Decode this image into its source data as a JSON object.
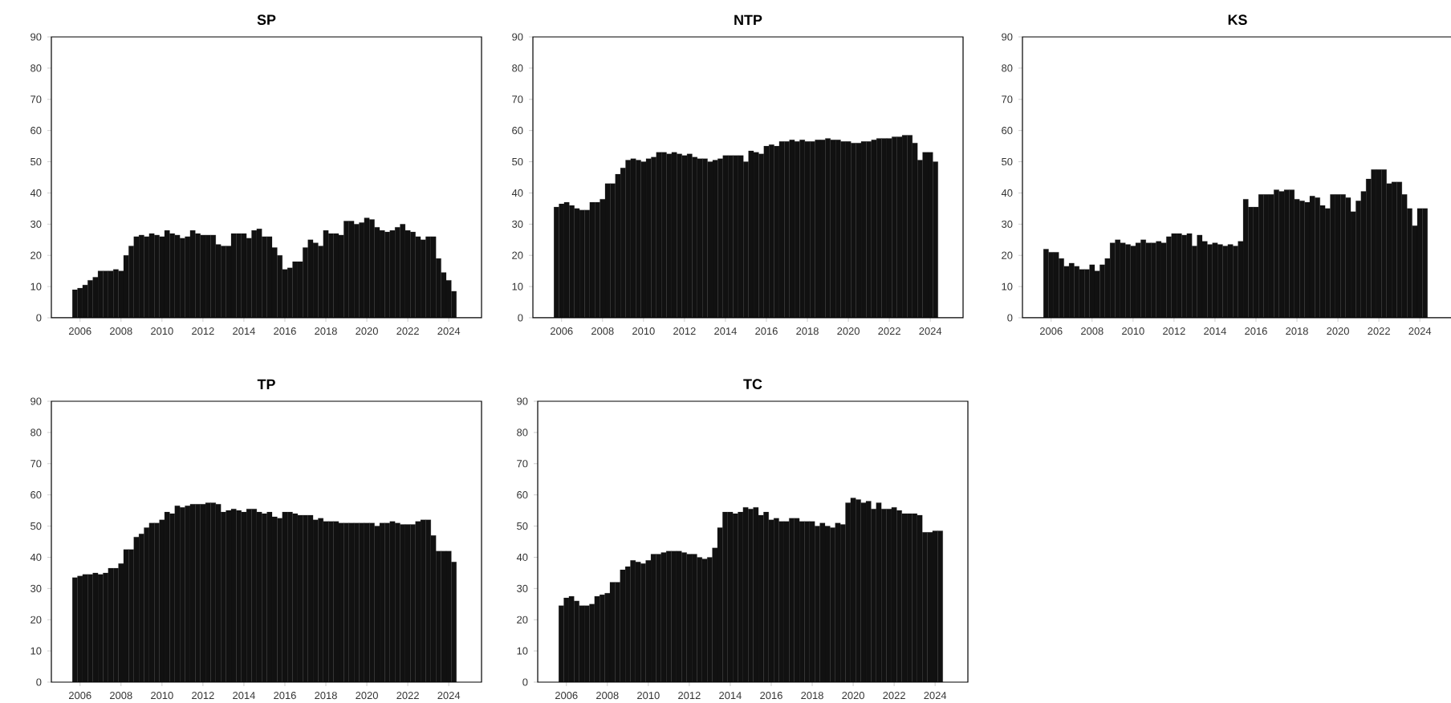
{
  "chart_data": [
    {
      "type": "bar",
      "title": "SP",
      "color": "#111111",
      "xlim": [
        2004.6,
        2025.6
      ],
      "ylim": [
        0,
        90
      ],
      "xticks": [
        2006,
        2008,
        2010,
        2012,
        2014,
        2016,
        2018,
        2020,
        2022,
        2024
      ],
      "yticks": [
        0,
        10,
        20,
        30,
        40,
        50,
        60,
        70,
        80,
        90
      ],
      "x": [
        2005.75,
        2006,
        2006.25,
        2006.5,
        2006.75,
        2007,
        2007.25,
        2007.5,
        2007.75,
        2008,
        2008.25,
        2008.5,
        2008.75,
        2009,
        2009.25,
        2009.5,
        2009.75,
        2010,
        2010.25,
        2010.5,
        2010.75,
        2011,
        2011.25,
        2011.5,
        2011.75,
        2012,
        2012.25,
        2012.5,
        2012.75,
        2013,
        2013.25,
        2013.5,
        2013.75,
        2014,
        2014.25,
        2014.5,
        2014.75,
        2015,
        2015.25,
        2015.5,
        2015.75,
        2016,
        2016.25,
        2016.5,
        2016.75,
        2017,
        2017.25,
        2017.5,
        2017.75,
        2018,
        2018.25,
        2018.5,
        2018.75,
        2019,
        2019.25,
        2019.5,
        2019.75,
        2020,
        2020.25,
        2020.5,
        2020.75,
        2021,
        2021.25,
        2021.5,
        2021.75,
        2022,
        2022.25,
        2022.5,
        2022.75,
        2023,
        2023.25,
        2023.5,
        2023.75,
        2024,
        2024.25
      ],
      "values": [
        9,
        9.5,
        10.5,
        12,
        13,
        15,
        15,
        15,
        15.5,
        15,
        20,
        23,
        26,
        26.5,
        26,
        27,
        26.5,
        26,
        28,
        27,
        26.5,
        25.5,
        26,
        28,
        27,
        26.5,
        26.5,
        26.5,
        23.5,
        23,
        23,
        27,
        27,
        27,
        25.5,
        28,
        28.5,
        26,
        26,
        22.5,
        20,
        15.5,
        16,
        18,
        18,
        22.5,
        25,
        24,
        23,
        28,
        27,
        27,
        26.5,
        31,
        31,
        30,
        30.5,
        32,
        31.5,
        29,
        28,
        27.5,
        28,
        29,
        30,
        28,
        27.5,
        26,
        25,
        26,
        26,
        19,
        14.5,
        12,
        8.5
      ]
    },
    {
      "type": "bar",
      "title": "NTP",
      "color": "#111111",
      "xlim": [
        2004.6,
        2025.6
      ],
      "ylim": [
        0,
        90
      ],
      "xticks": [
        2006,
        2008,
        2010,
        2012,
        2014,
        2016,
        2018,
        2020,
        2022,
        2024
      ],
      "yticks": [
        0,
        10,
        20,
        30,
        40,
        50,
        60,
        70,
        80,
        90
      ],
      "x": [
        2005.75,
        2006,
        2006.25,
        2006.5,
        2006.75,
        2007,
        2007.25,
        2007.5,
        2007.75,
        2008,
        2008.25,
        2008.5,
        2008.75,
        2009,
        2009.25,
        2009.5,
        2009.75,
        2010,
        2010.25,
        2010.5,
        2010.75,
        2011,
        2011.25,
        2011.5,
        2011.75,
        2012,
        2012.25,
        2012.5,
        2012.75,
        2013,
        2013.25,
        2013.5,
        2013.75,
        2014,
        2014.25,
        2014.5,
        2014.75,
        2015,
        2015.25,
        2015.5,
        2015.75,
        2016,
        2016.25,
        2016.5,
        2016.75,
        2017,
        2017.25,
        2017.5,
        2017.75,
        2018,
        2018.25,
        2018.5,
        2018.75,
        2019,
        2019.25,
        2019.5,
        2019.75,
        2020,
        2020.25,
        2020.5,
        2020.75,
        2021,
        2021.25,
        2021.5,
        2021.75,
        2022,
        2022.25,
        2022.5,
        2022.75,
        2023,
        2023.25,
        2023.5,
        2023.75,
        2024,
        2024.25
      ],
      "values": [
        35.5,
        36.5,
        37,
        36,
        35,
        34.5,
        34.5,
        37,
        37,
        38,
        43,
        43,
        46,
        48,
        50.5,
        51,
        50.5,
        50,
        51,
        51.5,
        53,
        53,
        52.5,
        53,
        52.5,
        52,
        52.5,
        51.5,
        51,
        51,
        50,
        50.5,
        51,
        52,
        52,
        52,
        52,
        50,
        53.5,
        53,
        52.5,
        55,
        55.5,
        55,
        56.5,
        56.5,
        57,
        56.5,
        57,
        56.5,
        56.5,
        57,
        57,
        57.5,
        57,
        57,
        56.5,
        56.5,
        56,
        56,
        56.5,
        56.5,
        57,
        57.5,
        57.5,
        57.5,
        58,
        58,
        58.5,
        58.5,
        56,
        50.5,
        53,
        53,
        50
      ]
    },
    {
      "type": "bar",
      "title": "KS",
      "color": "#111111",
      "xlim": [
        2004.6,
        2025.6
      ],
      "ylim": [
        0,
        90
      ],
      "xticks": [
        2006,
        2008,
        2010,
        2012,
        2014,
        2016,
        2018,
        2020,
        2022,
        2024
      ],
      "yticks": [
        0,
        10,
        20,
        30,
        40,
        50,
        60,
        70,
        80,
        90
      ],
      "x": [
        2005.75,
        2006,
        2006.25,
        2006.5,
        2006.75,
        2007,
        2007.25,
        2007.5,
        2007.75,
        2008,
        2008.25,
        2008.5,
        2008.75,
        2009,
        2009.25,
        2009.5,
        2009.75,
        2010,
        2010.25,
        2010.5,
        2010.75,
        2011,
        2011.25,
        2011.5,
        2011.75,
        2012,
        2012.25,
        2012.5,
        2012.75,
        2013,
        2013.25,
        2013.5,
        2013.75,
        2014,
        2014.25,
        2014.5,
        2014.75,
        2015,
        2015.25,
        2015.5,
        2015.75,
        2016,
        2016.25,
        2016.5,
        2016.75,
        2017,
        2017.25,
        2017.5,
        2017.75,
        2018,
        2018.25,
        2018.5,
        2018.75,
        2019,
        2019.25,
        2019.5,
        2019.75,
        2020,
        2020.25,
        2020.5,
        2020.75,
        2021,
        2021.25,
        2021.5,
        2021.75,
        2022,
        2022.25,
        2022.5,
        2022.75,
        2023,
        2023.25,
        2023.5,
        2023.75,
        2024,
        2024.25
      ],
      "values": [
        22,
        21,
        21,
        19,
        16.5,
        17.5,
        16.5,
        15.5,
        15.5,
        17,
        15,
        17,
        19,
        24,
        25,
        24,
        23.5,
        23,
        24,
        25,
        24,
        24,
        24.5,
        24,
        26,
        27,
        27,
        26.5,
        27,
        23,
        26.5,
        24.5,
        23.5,
        24,
        23.5,
        23,
        23.5,
        23,
        24.5,
        38,
        35.5,
        35.5,
        39.5,
        39.5,
        39.5,
        41,
        40.5,
        41,
        41,
        38,
        37.5,
        37,
        39,
        38.5,
        36,
        35,
        39.5,
        39.5,
        39.5,
        38.5,
        34,
        37.5,
        40.5,
        44.5,
        47.5,
        47.5,
        47.5,
        43,
        43.5,
        43.5,
        39.5,
        35,
        29.5,
        35,
        35
      ]
    },
    {
      "type": "bar",
      "title": "TP",
      "color": "#111111",
      "xlim": [
        2004.6,
        2025.6
      ],
      "ylim": [
        0,
        90
      ],
      "xticks": [
        2006,
        2008,
        2010,
        2012,
        2014,
        2016,
        2018,
        2020,
        2022,
        2024
      ],
      "yticks": [
        0,
        10,
        20,
        30,
        40,
        50,
        60,
        70,
        80,
        90
      ],
      "x": [
        2005.75,
        2006,
        2006.25,
        2006.5,
        2006.75,
        2007,
        2007.25,
        2007.5,
        2007.75,
        2008,
        2008.25,
        2008.5,
        2008.75,
        2009,
        2009.25,
        2009.5,
        2009.75,
        2010,
        2010.25,
        2010.5,
        2010.75,
        2011,
        2011.25,
        2011.5,
        2011.75,
        2012,
        2012.25,
        2012.5,
        2012.75,
        2013,
        2013.25,
        2013.5,
        2013.75,
        2014,
        2014.25,
        2014.5,
        2014.75,
        2015,
        2015.25,
        2015.5,
        2015.75,
        2016,
        2016.25,
        2016.5,
        2016.75,
        2017,
        2017.25,
        2017.5,
        2017.75,
        2018,
        2018.25,
        2018.5,
        2018.75,
        2019,
        2019.25,
        2019.5,
        2019.75,
        2020,
        2020.25,
        2020.5,
        2020.75,
        2021,
        2021.25,
        2021.5,
        2021.75,
        2022,
        2022.25,
        2022.5,
        2022.75,
        2023,
        2023.25,
        2023.5,
        2023.75,
        2024,
        2024.25
      ],
      "values": [
        33.5,
        34,
        34.5,
        34.5,
        35,
        34.5,
        35,
        36.5,
        36.5,
        38,
        42.5,
        42.5,
        46.5,
        47.5,
        49.5,
        51,
        51,
        52,
        54.5,
        54,
        56.5,
        56,
        56.5,
        57,
        57,
        57,
        57.5,
        57.5,
        57,
        54.5,
        55,
        55.5,
        55,
        54.5,
        55.5,
        55.5,
        54.5,
        54,
        54.5,
        53,
        52.5,
        54.5,
        54.5,
        54,
        53.5,
        53.5,
        53.5,
        52,
        52.5,
        51.5,
        51.5,
        51.5,
        51,
        51,
        51,
        51,
        51,
        51,
        51,
        50,
        51,
        51,
        51.5,
        51,
        50.5,
        50.5,
        50.5,
        51.5,
        52,
        52,
        47,
        42,
        42,
        42,
        38.5
      ]
    },
    {
      "type": "bar",
      "title": "TC",
      "color": "#111111",
      "xlim": [
        2004.6,
        2025.6
      ],
      "ylim": [
        0,
        90
      ],
      "xticks": [
        2006,
        2008,
        2010,
        2012,
        2014,
        2016,
        2018,
        2020,
        2022,
        2024
      ],
      "yticks": [
        0,
        10,
        20,
        30,
        40,
        50,
        60,
        70,
        80,
        90
      ],
      "x": [
        2005.75,
        2006,
        2006.25,
        2006.5,
        2006.75,
        2007,
        2007.25,
        2007.5,
        2007.75,
        2008,
        2008.25,
        2008.5,
        2008.75,
        2009,
        2009.25,
        2009.5,
        2009.75,
        2010,
        2010.25,
        2010.5,
        2010.75,
        2011,
        2011.25,
        2011.5,
        2011.75,
        2012,
        2012.25,
        2012.5,
        2012.75,
        2013,
        2013.25,
        2013.5,
        2013.75,
        2014,
        2014.25,
        2014.5,
        2014.75,
        2015,
        2015.25,
        2015.5,
        2015.75,
        2016,
        2016.25,
        2016.5,
        2016.75,
        2017,
        2017.25,
        2017.5,
        2017.75,
        2018,
        2018.25,
        2018.5,
        2018.75,
        2019,
        2019.25,
        2019.5,
        2019.75,
        2020,
        2020.25,
        2020.5,
        2020.75,
        2021,
        2021.25,
        2021.5,
        2021.75,
        2022,
        2022.25,
        2022.5,
        2022.75,
        2023,
        2023.25,
        2023.5,
        2023.75,
        2024,
        2024.25
      ],
      "values": [
        24.5,
        27,
        27.5,
        26,
        24.5,
        24.5,
        25,
        27.5,
        28,
        28.5,
        32,
        32,
        36,
        37,
        39,
        38.5,
        38,
        39,
        41,
        41,
        41.5,
        42,
        42,
        42,
        41.5,
        41,
        41,
        40,
        39.5,
        40,
        43,
        49.5,
        54.5,
        54.5,
        54,
        54.5,
        56,
        55.5,
        56,
        53.5,
        54.5,
        52,
        52.5,
        51.5,
        51.5,
        52.5,
        52.5,
        51.5,
        51.5,
        51.5,
        50,
        51,
        50,
        49.5,
        51,
        50.5,
        57.5,
        59,
        58.5,
        57.5,
        58,
        55.5,
        57.5,
        55.5,
        55.5,
        56,
        55,
        54,
        54,
        54,
        53.5,
        48,
        48,
        48.5,
        48.5
      ]
    }
  ]
}
